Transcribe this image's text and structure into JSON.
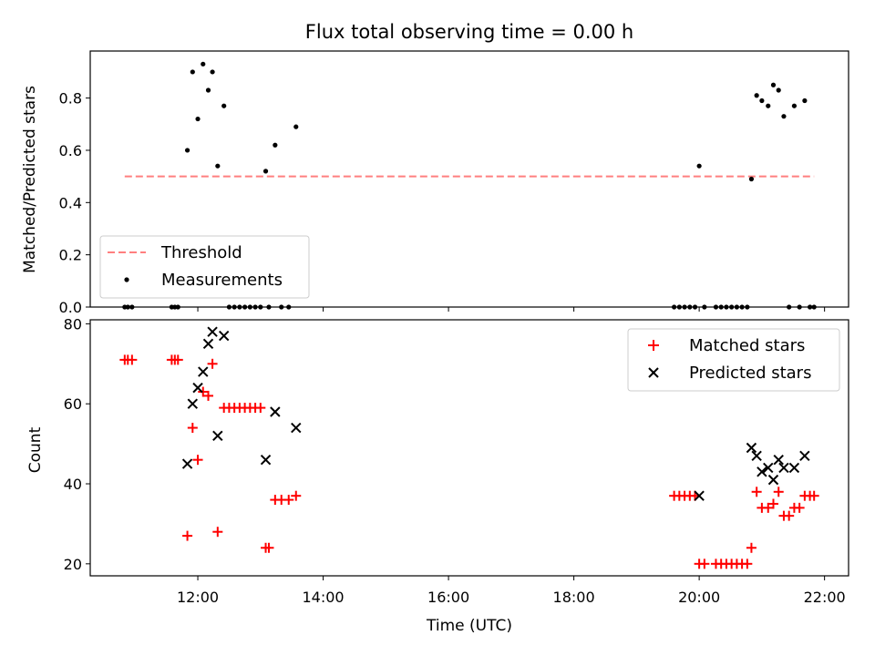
{
  "chart_data": [
    {
      "type": "scatter",
      "title": "Flux total observing time = 0.00 h",
      "xlabel": "",
      "ylabel": "Matched/Predicted stars",
      "xlim": [
        "10:17",
        "22:23"
      ],
      "ylim": [
        0,
        0.98
      ],
      "yticks": [
        0.0,
        0.2,
        0.4,
        0.6,
        0.8
      ],
      "ytick_labels": [
        "0.0",
        "0.2",
        "0.4",
        "0.6",
        "0.8"
      ],
      "xticks": [
        "12:00",
        "14:00",
        "16:00",
        "18:00",
        "20:00",
        "22:00"
      ],
      "grid": false,
      "legend": {
        "placement": "lower-left",
        "entries": [
          "Threshold",
          "Measurements"
        ]
      },
      "threshold": {
        "name": "Threshold",
        "value": 0.5,
        "x_range": [
          "10:50",
          "21:50"
        ],
        "color": "#ff7f7f"
      },
      "series": [
        {
          "name": "Measurements",
          "color": "#000000",
          "points": [
            {
              "x": "10:50",
              "y": 0.0
            },
            {
              "x": "10:53",
              "y": 0.0
            },
            {
              "x": "10:57",
              "y": 0.0
            },
            {
              "x": "11:35",
              "y": 0.0
            },
            {
              "x": "11:38",
              "y": 0.0
            },
            {
              "x": "11:41",
              "y": 0.0
            },
            {
              "x": "11:50",
              "y": 0.6
            },
            {
              "x": "11:55",
              "y": 0.9
            },
            {
              "x": "12:00",
              "y": 0.72
            },
            {
              "x": "12:05",
              "y": 0.93
            },
            {
              "x": "12:10",
              "y": 0.83
            },
            {
              "x": "12:14",
              "y": 0.9
            },
            {
              "x": "12:19",
              "y": 0.54
            },
            {
              "x": "12:25",
              "y": 0.77
            },
            {
              "x": "12:30",
              "y": 0.0
            },
            {
              "x": "12:35",
              "y": 0.0
            },
            {
              "x": "12:40",
              "y": 0.0
            },
            {
              "x": "12:45",
              "y": 0.0
            },
            {
              "x": "12:50",
              "y": 0.0
            },
            {
              "x": "12:55",
              "y": 0.0
            },
            {
              "x": "13:00",
              "y": 0.0
            },
            {
              "x": "13:05",
              "y": 0.52
            },
            {
              "x": "13:08",
              "y": 0.0
            },
            {
              "x": "13:14",
              "y": 0.62
            },
            {
              "x": "13:20",
              "y": 0.0
            },
            {
              "x": "13:27",
              "y": 0.0
            },
            {
              "x": "13:34",
              "y": 0.69
            },
            {
              "x": "19:36",
              "y": 0.0
            },
            {
              "x": "19:41",
              "y": 0.0
            },
            {
              "x": "19:46",
              "y": 0.0
            },
            {
              "x": "19:51",
              "y": 0.0
            },
            {
              "x": "19:56",
              "y": 0.0
            },
            {
              "x": "20:00",
              "y": 0.54
            },
            {
              "x": "20:05",
              "y": 0.0
            },
            {
              "x": "20:16",
              "y": 0.0
            },
            {
              "x": "20:21",
              "y": 0.0
            },
            {
              "x": "20:26",
              "y": 0.0
            },
            {
              "x": "20:31",
              "y": 0.0
            },
            {
              "x": "20:36",
              "y": 0.0
            },
            {
              "x": "20:41",
              "y": 0.0
            },
            {
              "x": "20:46",
              "y": 0.0
            },
            {
              "x": "20:50",
              "y": 0.49
            },
            {
              "x": "20:55",
              "y": 0.81
            },
            {
              "x": "21:00",
              "y": 0.79
            },
            {
              "x": "21:06",
              "y": 0.77
            },
            {
              "x": "21:11",
              "y": 0.85
            },
            {
              "x": "21:16",
              "y": 0.83
            },
            {
              "x": "21:21",
              "y": 0.73
            },
            {
              "x": "21:26",
              "y": 0.0
            },
            {
              "x": "21:31",
              "y": 0.77
            },
            {
              "x": "21:36",
              "y": 0.0
            },
            {
              "x": "21:41",
              "y": 0.79
            },
            {
              "x": "21:46",
              "y": 0.0
            },
            {
              "x": "21:50",
              "y": 0.0
            }
          ]
        }
      ]
    },
    {
      "type": "scatter",
      "title": "",
      "xlabel": "Time (UTC)",
      "ylabel": "Count",
      "xlim": [
        "10:17",
        "22:23"
      ],
      "ylim": [
        17,
        81
      ],
      "yticks": [
        20,
        40,
        60,
        80
      ],
      "ytick_labels": [
        "20",
        "40",
        "60",
        "80"
      ],
      "xticks": [
        "12:00",
        "14:00",
        "16:00",
        "18:00",
        "20:00",
        "22:00"
      ],
      "grid": false,
      "legend": {
        "placement": "top-right",
        "entries": [
          "Matched stars",
          "Predicted stars"
        ]
      },
      "series": [
        {
          "name": "Matched stars",
          "marker": "plus",
          "color": "#ff0000",
          "points": [
            {
              "x": "10:50",
              "y": 71
            },
            {
              "x": "10:53",
              "y": 71
            },
            {
              "x": "10:57",
              "y": 71
            },
            {
              "x": "11:35",
              "y": 71
            },
            {
              "x": "11:38",
              "y": 71
            },
            {
              "x": "11:41",
              "y": 71
            },
            {
              "x": "11:50",
              "y": 27
            },
            {
              "x": "11:55",
              "y": 54
            },
            {
              "x": "12:00",
              "y": 46
            },
            {
              "x": "12:05",
              "y": 63
            },
            {
              "x": "12:10",
              "y": 62
            },
            {
              "x": "12:14",
              "y": 70
            },
            {
              "x": "12:19",
              "y": 28
            },
            {
              "x": "12:25",
              "y": 59
            },
            {
              "x": "12:30",
              "y": 59
            },
            {
              "x": "12:35",
              "y": 59
            },
            {
              "x": "12:40",
              "y": 59
            },
            {
              "x": "12:45",
              "y": 59
            },
            {
              "x": "12:50",
              "y": 59
            },
            {
              "x": "12:55",
              "y": 59
            },
            {
              "x": "13:00",
              "y": 59
            },
            {
              "x": "13:05",
              "y": 24
            },
            {
              "x": "13:08",
              "y": 24
            },
            {
              "x": "13:14",
              "y": 36
            },
            {
              "x": "13:20",
              "y": 36
            },
            {
              "x": "13:27",
              "y": 36
            },
            {
              "x": "13:34",
              "y": 37
            },
            {
              "x": "19:36",
              "y": 37
            },
            {
              "x": "19:41",
              "y": 37
            },
            {
              "x": "19:46",
              "y": 37
            },
            {
              "x": "19:51",
              "y": 37
            },
            {
              "x": "19:56",
              "y": 37
            },
            {
              "x": "20:00",
              "y": 20
            },
            {
              "x": "20:05",
              "y": 20
            },
            {
              "x": "20:16",
              "y": 20
            },
            {
              "x": "20:21",
              "y": 20
            },
            {
              "x": "20:26",
              "y": 20
            },
            {
              "x": "20:31",
              "y": 20
            },
            {
              "x": "20:36",
              "y": 20
            },
            {
              "x": "20:41",
              "y": 20
            },
            {
              "x": "20:46",
              "y": 20
            },
            {
              "x": "20:50",
              "y": 24
            },
            {
              "x": "20:55",
              "y": 38
            },
            {
              "x": "21:00",
              "y": 34
            },
            {
              "x": "21:06",
              "y": 34
            },
            {
              "x": "21:11",
              "y": 35
            },
            {
              "x": "21:16",
              "y": 38
            },
            {
              "x": "21:21",
              "y": 32
            },
            {
              "x": "21:26",
              "y": 32
            },
            {
              "x": "21:31",
              "y": 34
            },
            {
              "x": "21:36",
              "y": 34
            },
            {
              "x": "21:41",
              "y": 37
            },
            {
              "x": "21:46",
              "y": 37
            },
            {
              "x": "21:50",
              "y": 37
            }
          ]
        },
        {
          "name": "Predicted stars",
          "marker": "x",
          "color": "#000000",
          "points": [
            {
              "x": "11:50",
              "y": 45
            },
            {
              "x": "11:55",
              "y": 60
            },
            {
              "x": "12:00",
              "y": 64
            },
            {
              "x": "12:05",
              "y": 68
            },
            {
              "x": "12:10",
              "y": 75
            },
            {
              "x": "12:14",
              "y": 78
            },
            {
              "x": "12:19",
              "y": 52
            },
            {
              "x": "12:25",
              "y": 77
            },
            {
              "x": "13:05",
              "y": 46
            },
            {
              "x": "13:14",
              "y": 58
            },
            {
              "x": "13:34",
              "y": 54
            },
            {
              "x": "20:00",
              "y": 37
            },
            {
              "x": "20:50",
              "y": 49
            },
            {
              "x": "20:55",
              "y": 47
            },
            {
              "x": "21:00",
              "y": 43
            },
            {
              "x": "21:06",
              "y": 44
            },
            {
              "x": "21:11",
              "y": 41
            },
            {
              "x": "21:16",
              "y": 46
            },
            {
              "x": "21:21",
              "y": 44
            },
            {
              "x": "21:31",
              "y": 44
            },
            {
              "x": "21:41",
              "y": 47
            }
          ]
        }
      ]
    }
  ]
}
